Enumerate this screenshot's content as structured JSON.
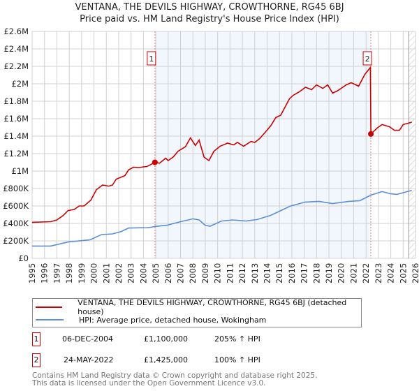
{
  "header": {
    "title": "VENTANA, THE DEVILS HIGHWAY, CROWTHORNE, RG45 6BJ",
    "subtitle": "Price paid vs. HM Land Registry's House Price Index (HPI)"
  },
  "chart_data": {
    "type": "line",
    "title": "VENTANA, THE DEVILS HIGHWAY, CROWTHORNE, RG45 6BJ",
    "subtitle": "Price paid vs. HM Land Registry's House Price Index (HPI)",
    "xlim": [
      1995,
      2026
    ],
    "ylim": [
      0,
      2600000
    ],
    "yticks": [
      {
        "v": 0,
        "label": "£0"
      },
      {
        "v": 200000,
        "label": "£200K"
      },
      {
        "v": 400000,
        "label": "£400K"
      },
      {
        "v": 600000,
        "label": "£600K"
      },
      {
        "v": 800000,
        "label": "£800K"
      },
      {
        "v": 1000000,
        "label": "£1M"
      },
      {
        "v": 1200000,
        "label": "£1.2M"
      },
      {
        "v": 1400000,
        "label": "£1.4M"
      },
      {
        "v": 1600000,
        "label": "£1.6M"
      },
      {
        "v": 1800000,
        "label": "£1.8M"
      },
      {
        "v": 2000000,
        "label": "£2M"
      },
      {
        "v": 2200000,
        "label": "£2.2M"
      },
      {
        "v": 2400000,
        "label": "£2.4M"
      },
      {
        "v": 2600000,
        "label": "£2.6M"
      }
    ],
    "xticks": [
      "1995",
      "1996",
      "1997",
      "1998",
      "1999",
      "2000",
      "2001",
      "2002",
      "2003",
      "2004",
      "2005",
      "2006",
      "2007",
      "2008",
      "2009",
      "2010",
      "2011",
      "2012",
      "2013",
      "2014",
      "2015",
      "2016",
      "2017",
      "2018",
      "2019",
      "2020",
      "2021",
      "2022",
      "2023",
      "2024",
      "2025",
      "2026"
    ],
    "grid": true,
    "shaded_period": [
      2004.93,
      2022.39
    ],
    "forecast_hatch_from": 2025.45,
    "series": [
      {
        "name": "VENTANA, THE DEVILS HIGHWAY, CROWTHORNE, RG45 6BJ (detached house)",
        "color": "#cc0000",
        "points": [
          [
            1995,
            413000
          ],
          [
            1996.5,
            420000
          ],
          [
            1997,
            440000
          ],
          [
            1997.5,
            490000
          ],
          [
            1997.9,
            547000
          ],
          [
            1998.4,
            560000
          ],
          [
            1998.8,
            600000
          ],
          [
            1999.2,
            600000
          ],
          [
            1999.75,
            667000
          ],
          [
            2000.2,
            787000
          ],
          [
            2000.7,
            840000
          ],
          [
            2001.2,
            827000
          ],
          [
            2001.5,
            840000
          ],
          [
            2001.8,
            907000
          ],
          [
            2002.5,
            947000
          ],
          [
            2002.8,
            1013000
          ],
          [
            2003.2,
            1045000
          ],
          [
            2003.6,
            1040000
          ],
          [
            2004.3,
            1053000
          ],
          [
            2004.93,
            1100000
          ],
          [
            2005.3,
            1090000
          ],
          [
            2005.8,
            1147000
          ],
          [
            2006.0,
            1120000
          ],
          [
            2006.4,
            1160000
          ],
          [
            2006.8,
            1227000
          ],
          [
            2007.4,
            1280000
          ],
          [
            2007.8,
            1381000
          ],
          [
            2008.2,
            1293000
          ],
          [
            2008.5,
            1355000
          ],
          [
            2008.9,
            1160000
          ],
          [
            2009.3,
            1120000
          ],
          [
            2009.7,
            1227000
          ],
          [
            2010.2,
            1285000
          ],
          [
            2010.8,
            1320000
          ],
          [
            2011.3,
            1300000
          ],
          [
            2011.6,
            1328000
          ],
          [
            2012.1,
            1285000
          ],
          [
            2012.7,
            1339000
          ],
          [
            2013.0,
            1328000
          ],
          [
            2013.4,
            1373000
          ],
          [
            2013.9,
            1453000
          ],
          [
            2014.3,
            1520000
          ],
          [
            2014.7,
            1613000
          ],
          [
            2015.1,
            1640000
          ],
          [
            2015.8,
            1827000
          ],
          [
            2016.1,
            1867000
          ],
          [
            2016.6,
            1907000
          ],
          [
            2017.1,
            1960000
          ],
          [
            2017.6,
            1933000
          ],
          [
            2018.0,
            1987000
          ],
          [
            2018.5,
            1947000
          ],
          [
            2018.9,
            1987000
          ],
          [
            2019.3,
            1893000
          ],
          [
            2019.7,
            1920000
          ],
          [
            2020.4,
            1987000
          ],
          [
            2020.8,
            2013000
          ],
          [
            2021.4,
            1973000
          ],
          [
            2021.9,
            2107000
          ],
          [
            2022.35,
            2187000
          ],
          [
            2022.39,
            1425000
          ],
          [
            2022.9,
            1493000
          ],
          [
            2023.3,
            1533000
          ],
          [
            2023.9,
            1507000
          ],
          [
            2024.3,
            1467000
          ],
          [
            2024.7,
            1467000
          ],
          [
            2025.0,
            1533000
          ],
          [
            2025.7,
            1560000
          ]
        ]
      },
      {
        "name": "HPI: Average price, detached house, Wokingham",
        "color": "#5b8fd6",
        "points": [
          [
            1995,
            141000
          ],
          [
            1996.5,
            141000
          ],
          [
            1997.9,
            187000
          ],
          [
            1999.7,
            213000
          ],
          [
            2000.6,
            272000
          ],
          [
            2001.5,
            280000
          ],
          [
            2002.2,
            307000
          ],
          [
            2002.8,
            347000
          ],
          [
            2004.4,
            352000
          ],
          [
            2004.93,
            365000
          ],
          [
            2005.9,
            379000
          ],
          [
            2006.8,
            413000
          ],
          [
            2008.0,
            453000
          ],
          [
            2008.5,
            440000
          ],
          [
            2009.0,
            379000
          ],
          [
            2009.4,
            368000
          ],
          [
            2010.3,
            427000
          ],
          [
            2011.2,
            440000
          ],
          [
            2012.3,
            427000
          ],
          [
            2013.2,
            445000
          ],
          [
            2014.3,
            493000
          ],
          [
            2014.9,
            533000
          ],
          [
            2015.9,
            600000
          ],
          [
            2017.1,
            645000
          ],
          [
            2018.2,
            653000
          ],
          [
            2019.3,
            627000
          ],
          [
            2020.6,
            653000
          ],
          [
            2021.5,
            661000
          ],
          [
            2022.4,
            725000
          ],
          [
            2023.3,
            765000
          ],
          [
            2024.0,
            739000
          ],
          [
            2024.5,
            733000
          ],
          [
            2025.7,
            779000
          ]
        ]
      }
    ],
    "sales": [
      {
        "id": "1",
        "x": 2004.93,
        "value": 1100000
      },
      {
        "id": "2",
        "x": 2022.39,
        "value": 1425000
      }
    ]
  },
  "legend": {
    "items": [
      {
        "label": "VENTANA, THE DEVILS HIGHWAY, CROWTHORNE, RG45 6BJ (detached house)",
        "color": "#cc0000"
      },
      {
        "label": "HPI: Average price, detached house, Wokingham",
        "color": "#5b8fd6"
      }
    ]
  },
  "transactions": [
    {
      "id": "1",
      "date": "06-DEC-2004",
      "price": "£1,100,000",
      "hpi": "205% ↑ HPI"
    },
    {
      "id": "2",
      "date": "24-MAY-2022",
      "price": "£1,425,000",
      "hpi": "100% ↑ HPI"
    }
  ],
  "footer": {
    "line1": "Contains HM Land Registry data © Crown copyright and database right 2025.",
    "line2": "This data is licensed under the Open Government Licence v3.0."
  }
}
